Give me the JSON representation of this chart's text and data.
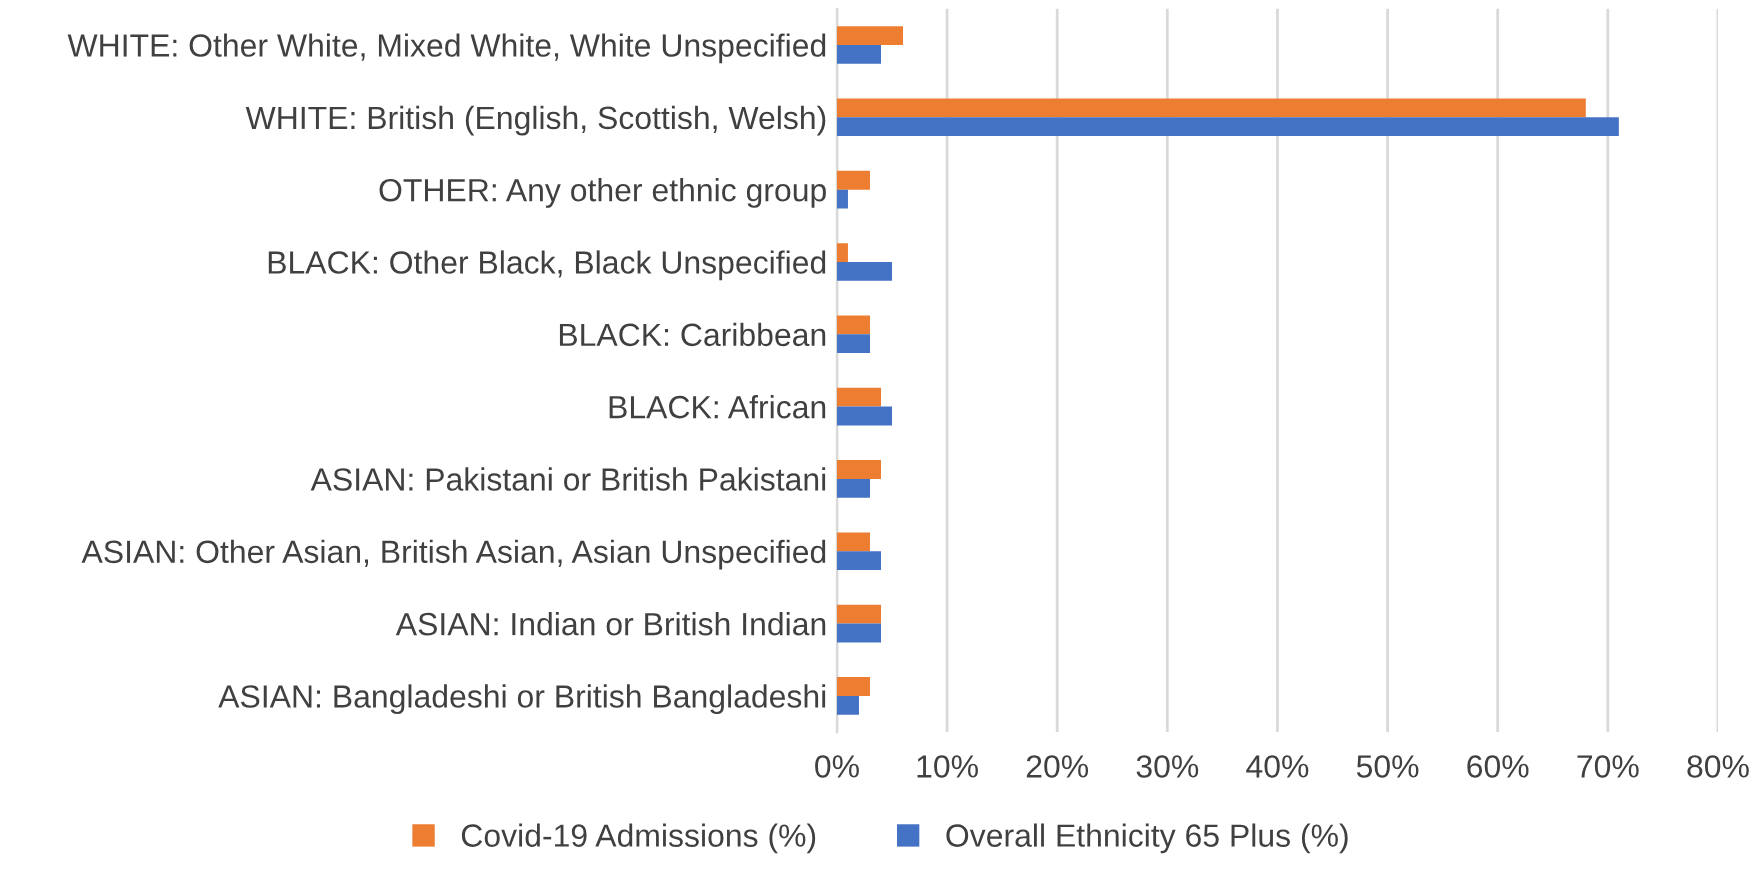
{
  "chart_data": {
    "type": "bar",
    "orientation": "horizontal",
    "categories": [
      "WHITE: Other White, Mixed White, White Unspecified",
      "WHITE: British (English, Scottish, Welsh)",
      "OTHER: Any other ethnic group",
      "BLACK: Other Black, Black Unspecified",
      "BLACK: Caribbean",
      "BLACK: African",
      "ASIAN: Pakistani or British Pakistani",
      "ASIAN: Other Asian, British Asian, Asian Unspecified",
      "ASIAN: Indian or British Indian",
      "ASIAN: Bangladeshi or British Bangladeshi"
    ],
    "series": [
      {
        "name": "Covid-19 Admissions (%)",
        "color": "#ed7d31",
        "values": [
          6,
          68,
          3,
          1,
          3,
          4,
          4,
          3,
          4,
          3
        ]
      },
      {
        "name": "Overall Ethnicity 65 Plus (%)",
        "color": "#4472c4",
        "values": [
          4,
          71,
          1,
          5,
          3,
          5,
          3,
          4,
          4,
          2
        ]
      }
    ],
    "xlim": [
      0,
      80
    ],
    "xticks": [
      {
        "value": 0,
        "label": "0%"
      },
      {
        "value": 10,
        "label": "10%"
      },
      {
        "value": 20,
        "label": "20%"
      },
      {
        "value": 30,
        "label": "30%"
      },
      {
        "value": 40,
        "label": "40%"
      },
      {
        "value": 50,
        "label": "50%"
      },
      {
        "value": 60,
        "label": "60%"
      },
      {
        "value": 70,
        "label": "70%"
      },
      {
        "value": 80,
        "label": "80%"
      }
    ],
    "grid": "x",
    "legend": "bottom"
  }
}
